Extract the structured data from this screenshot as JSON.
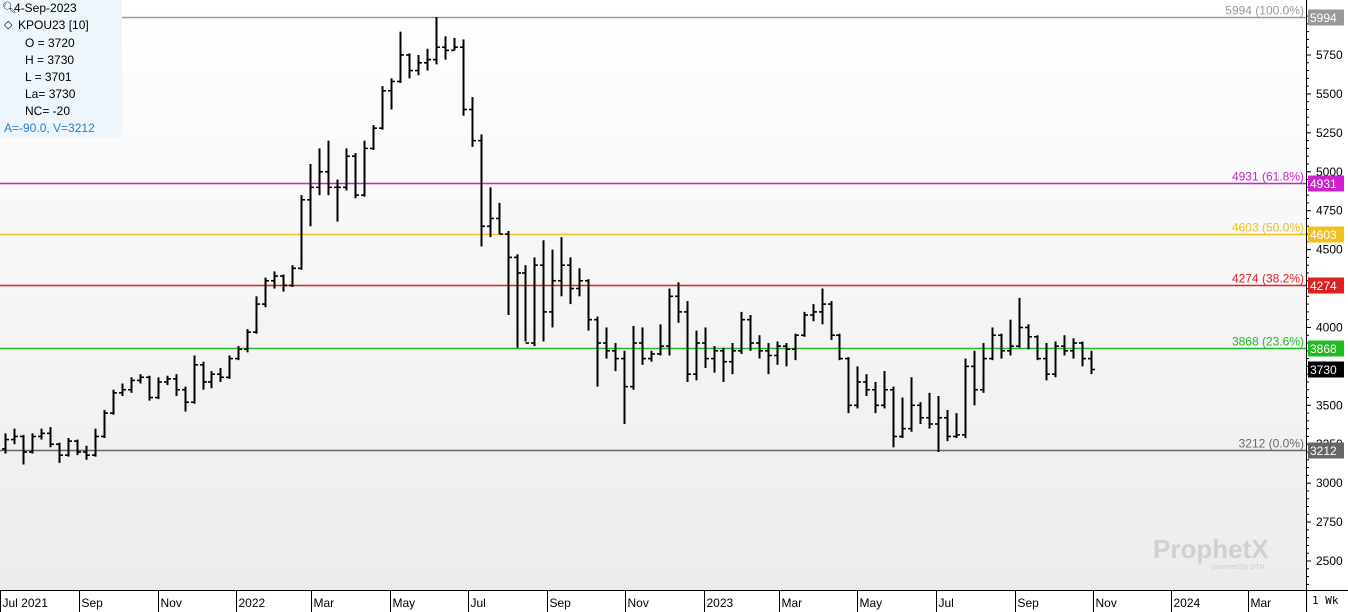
{
  "info_panel": {
    "date": "4-Sep-2023",
    "symbol": "KPOU23 [10]",
    "open": "O = 3720",
    "high": "H = 3730",
    "low": "L = 3701",
    "last": "La= 3730",
    "net_change": "NC= -20",
    "av": "A=-90.0, V=3212"
  },
  "watermark": {
    "brand": "ProphetX",
    "sub": "powered by DTN"
  },
  "period_label": "1 Wk",
  "colors": {
    "fib_100": "#999999",
    "fib_618": "#cc22cc",
    "fib_50": "#f0c020",
    "fib_382": "#e02020",
    "fib_236": "#22bb22",
    "fib_0": "#666666",
    "last_price": "#000000",
    "bars": "#000000",
    "grid_top": "#ffffff",
    "grid_bottom": "#ececec"
  },
  "chart_data": {
    "type": "ohlc",
    "period": "weekly",
    "y_axis": {
      "min": 2300,
      "max": 6000,
      "ticks": [
        2500,
        2750,
        3000,
        3250,
        3500,
        3750,
        4000,
        4250,
        4500,
        4750,
        5000,
        5250,
        5500,
        5750
      ],
      "tick_labels": [
        "2500",
        "2750",
        "3000",
        "3250",
        "3500",
        "3750",
        "4000",
        "4250",
        "4500",
        "4750",
        "5000",
        "5250",
        "5500",
        "5750"
      ]
    },
    "x_axis": {
      "start": "2021-07-01",
      "end": "2024-04-15",
      "ticks": [
        {
          "date": "2021-07-01",
          "label": "Jul 2021"
        },
        {
          "date": "2021-09-01",
          "label": "Sep"
        },
        {
          "date": "2021-11-01",
          "label": "Nov"
        },
        {
          "date": "2022-01-01",
          "label": "2022"
        },
        {
          "date": "2022-03-01",
          "label": "Mar"
        },
        {
          "date": "2022-05-01",
          "label": "May"
        },
        {
          "date": "2022-07-01",
          "label": "Jul"
        },
        {
          "date": "2022-09-01",
          "label": "Sep"
        },
        {
          "date": "2022-11-01",
          "label": "Nov"
        },
        {
          "date": "2023-01-01",
          "label": "2023"
        },
        {
          "date": "2023-03-01",
          "label": "Mar"
        },
        {
          "date": "2023-05-01",
          "label": "May"
        },
        {
          "date": "2023-07-01",
          "label": "Jul"
        },
        {
          "date": "2023-09-01",
          "label": "Sep"
        },
        {
          "date": "2023-11-01",
          "label": "Nov"
        },
        {
          "date": "2024-01-01",
          "label": "2024"
        },
        {
          "date": "2024-03-01",
          "label": "Mar"
        }
      ]
    },
    "fib_levels": [
      {
        "value": 5994,
        "label": "5994 (100.0%)",
        "tag": "5994",
        "color": "#999999"
      },
      {
        "value": 4931,
        "label": "4931 (61.8%)",
        "tag": "4931",
        "color": "#cc22cc"
      },
      {
        "value": 4603,
        "label": "4603 (50.0%)",
        "tag": "4603",
        "color": "#f0c020"
      },
      {
        "value": 4274,
        "label": "4274 (38.2%)",
        "tag": "4274",
        "color": "#e02020"
      },
      {
        "value": 3868,
        "label": "3868 (23.6%)",
        "tag": "3868",
        "color": "#22bb22"
      },
      {
        "value": 3212,
        "label": "3212 (0.0%)",
        "tag": "3212",
        "color": "#666666"
      }
    ],
    "last_price": {
      "value": 3730,
      "tag": "3730"
    },
    "bars": [
      {
        "d": "2021-07-05",
        "o": 3220,
        "h": 3320,
        "l": 3190,
        "c": 3280
      },
      {
        "d": "2021-07-12",
        "o": 3280,
        "h": 3350,
        "l": 3250,
        "c": 3300
      },
      {
        "d": "2021-07-19",
        "o": 3300,
        "h": 3310,
        "l": 3120,
        "c": 3200
      },
      {
        "d": "2021-07-26",
        "o": 3200,
        "h": 3320,
        "l": 3190,
        "c": 3300
      },
      {
        "d": "2021-08-02",
        "o": 3300,
        "h": 3350,
        "l": 3280,
        "c": 3320
      },
      {
        "d": "2021-08-09",
        "o": 3320,
        "h": 3360,
        "l": 3230,
        "c": 3250
      },
      {
        "d": "2021-08-16",
        "o": 3250,
        "h": 3260,
        "l": 3130,
        "c": 3180
      },
      {
        "d": "2021-08-23",
        "o": 3180,
        "h": 3290,
        "l": 3170,
        "c": 3270
      },
      {
        "d": "2021-08-30",
        "o": 3270,
        "h": 3280,
        "l": 3180,
        "c": 3200
      },
      {
        "d": "2021-09-06",
        "o": 3200,
        "h": 3240,
        "l": 3150,
        "c": 3180
      },
      {
        "d": "2021-09-13",
        "o": 3180,
        "h": 3350,
        "l": 3170,
        "c": 3300
      },
      {
        "d": "2021-09-20",
        "o": 3300,
        "h": 3470,
        "l": 3290,
        "c": 3450
      },
      {
        "d": "2021-09-27",
        "o": 3450,
        "h": 3600,
        "l": 3440,
        "c": 3580
      },
      {
        "d": "2021-10-04",
        "o": 3580,
        "h": 3640,
        "l": 3560,
        "c": 3600
      },
      {
        "d": "2021-10-11",
        "o": 3600,
        "h": 3680,
        "l": 3580,
        "c": 3660
      },
      {
        "d": "2021-10-18",
        "o": 3660,
        "h": 3700,
        "l": 3640,
        "c": 3680
      },
      {
        "d": "2021-10-25",
        "o": 3680,
        "h": 3690,
        "l": 3530,
        "c": 3550
      },
      {
        "d": "2021-11-01",
        "o": 3550,
        "h": 3680,
        "l": 3540,
        "c": 3650
      },
      {
        "d": "2021-11-08",
        "o": 3650,
        "h": 3690,
        "l": 3630,
        "c": 3670
      },
      {
        "d": "2021-11-15",
        "o": 3670,
        "h": 3700,
        "l": 3560,
        "c": 3600
      },
      {
        "d": "2021-11-22",
        "o": 3600,
        "h": 3620,
        "l": 3460,
        "c": 3520
      },
      {
        "d": "2021-11-29",
        "o": 3520,
        "h": 3820,
        "l": 3510,
        "c": 3760
      },
      {
        "d": "2021-12-06",
        "o": 3760,
        "h": 3780,
        "l": 3600,
        "c": 3650
      },
      {
        "d": "2021-12-13",
        "o": 3650,
        "h": 3720,
        "l": 3610,
        "c": 3700
      },
      {
        "d": "2021-12-20",
        "o": 3700,
        "h": 3740,
        "l": 3650,
        "c": 3680
      },
      {
        "d": "2021-12-27",
        "o": 3680,
        "h": 3820,
        "l": 3670,
        "c": 3800
      },
      {
        "d": "2022-01-03",
        "o": 3800,
        "h": 3880,
        "l": 3790,
        "c": 3860
      },
      {
        "d": "2022-01-10",
        "o": 3860,
        "h": 3990,
        "l": 3840,
        "c": 3970
      },
      {
        "d": "2022-01-17",
        "o": 3970,
        "h": 4200,
        "l": 3960,
        "c": 4150
      },
      {
        "d": "2022-01-24",
        "o": 4150,
        "h": 4320,
        "l": 4130,
        "c": 4300
      },
      {
        "d": "2022-01-31",
        "o": 4300,
        "h": 4360,
        "l": 4250,
        "c": 4330
      },
      {
        "d": "2022-02-07",
        "o": 4330,
        "h": 4340,
        "l": 4230,
        "c": 4270
      },
      {
        "d": "2022-02-14",
        "o": 4270,
        "h": 4400,
        "l": 4260,
        "c": 4380
      },
      {
        "d": "2022-02-21",
        "o": 4380,
        "h": 4850,
        "l": 4370,
        "c": 4820
      },
      {
        "d": "2022-02-28",
        "o": 4820,
        "h": 5050,
        "l": 4650,
        "c": 4900
      },
      {
        "d": "2022-03-07",
        "o": 4900,
        "h": 5150,
        "l": 4850,
        "c": 5000
      },
      {
        "d": "2022-03-14",
        "o": 5000,
        "h": 5200,
        "l": 4850,
        "c": 4900
      },
      {
        "d": "2022-03-21",
        "o": 4900,
        "h": 4950,
        "l": 4680,
        "c": 4900
      },
      {
        "d": "2022-03-28",
        "o": 4900,
        "h": 5150,
        "l": 4880,
        "c": 5100
      },
      {
        "d": "2022-04-04",
        "o": 5100,
        "h": 5120,
        "l": 4830,
        "c": 4850
      },
      {
        "d": "2022-04-11",
        "o": 4850,
        "h": 5200,
        "l": 4840,
        "c": 5150
      },
      {
        "d": "2022-04-18",
        "o": 5150,
        "h": 5300,
        "l": 5140,
        "c": 5280
      },
      {
        "d": "2022-04-25",
        "o": 5280,
        "h": 5550,
        "l": 5270,
        "c": 5520
      },
      {
        "d": "2022-05-02",
        "o": 5520,
        "h": 5600,
        "l": 5400,
        "c": 5580
      },
      {
        "d": "2022-05-09",
        "o": 5580,
        "h": 5900,
        "l": 5570,
        "c": 5750
      },
      {
        "d": "2022-05-16",
        "o": 5750,
        "h": 5760,
        "l": 5600,
        "c": 5650
      },
      {
        "d": "2022-05-23",
        "o": 5650,
        "h": 5750,
        "l": 5620,
        "c": 5700
      },
      {
        "d": "2022-05-30",
        "o": 5700,
        "h": 5790,
        "l": 5650,
        "c": 5720
      },
      {
        "d": "2022-06-06",
        "o": 5720,
        "h": 5994,
        "l": 5690,
        "c": 5800
      },
      {
        "d": "2022-06-13",
        "o": 5800,
        "h": 5870,
        "l": 5720,
        "c": 5780
      },
      {
        "d": "2022-06-20",
        "o": 5780,
        "h": 5860,
        "l": 5780,
        "c": 5800
      },
      {
        "d": "2022-06-27",
        "o": 5800,
        "h": 5850,
        "l": 5360,
        "c": 5400
      },
      {
        "d": "2022-07-04",
        "o": 5400,
        "h": 5480,
        "l": 5160,
        "c": 5200
      },
      {
        "d": "2022-07-11",
        "o": 5200,
        "h": 5240,
        "l": 4520,
        "c": 4650
      },
      {
        "d": "2022-07-18",
        "o": 4650,
        "h": 4900,
        "l": 4580,
        "c": 4700
      },
      {
        "d": "2022-07-25",
        "o": 4700,
        "h": 4800,
        "l": 4600,
        "c": 4600
      },
      {
        "d": "2022-08-01",
        "o": 4600,
        "h": 4620,
        "l": 4080,
        "c": 4450
      },
      {
        "d": "2022-08-08",
        "o": 4450,
        "h": 4470,
        "l": 3870,
        "c": 4350
      },
      {
        "d": "2022-08-15",
        "o": 4350,
        "h": 4400,
        "l": 3910,
        "c": 3900
      },
      {
        "d": "2022-08-22",
        "o": 3900,
        "h": 4450,
        "l": 3880,
        "c": 4400
      },
      {
        "d": "2022-08-29",
        "o": 4400,
        "h": 4560,
        "l": 3910,
        "c": 4100
      },
      {
        "d": "2022-09-05",
        "o": 4100,
        "h": 4500,
        "l": 4000,
        "c": 4300
      },
      {
        "d": "2022-09-12",
        "o": 4300,
        "h": 4580,
        "l": 4200,
        "c": 4400
      },
      {
        "d": "2022-09-19",
        "o": 4400,
        "h": 4450,
        "l": 4150,
        "c": 4250
      },
      {
        "d": "2022-09-26",
        "o": 4250,
        "h": 4380,
        "l": 4200,
        "c": 4300
      },
      {
        "d": "2022-10-03",
        "o": 4300,
        "h": 4310,
        "l": 3980,
        "c": 4050
      },
      {
        "d": "2022-10-10",
        "o": 4050,
        "h": 4070,
        "l": 3620,
        "c": 3900
      },
      {
        "d": "2022-10-17",
        "o": 3900,
        "h": 4000,
        "l": 3800,
        "c": 3850
      },
      {
        "d": "2022-10-24",
        "o": 3850,
        "h": 3900,
        "l": 3720,
        "c": 3800
      },
      {
        "d": "2022-10-31",
        "o": 3800,
        "h": 3850,
        "l": 3380,
        "c": 3620
      },
      {
        "d": "2022-11-07",
        "o": 3620,
        "h": 4010,
        "l": 3600,
        "c": 3900
      },
      {
        "d": "2022-11-14",
        "o": 3900,
        "h": 4000,
        "l": 3760,
        "c": 3800
      },
      {
        "d": "2022-11-21",
        "o": 3800,
        "h": 3850,
        "l": 3780,
        "c": 3830
      },
      {
        "d": "2022-11-28",
        "o": 3830,
        "h": 4020,
        "l": 3820,
        "c": 3880
      },
      {
        "d": "2022-12-05",
        "o": 3880,
        "h": 4250,
        "l": 3820,
        "c": 4200
      },
      {
        "d": "2022-12-12",
        "o": 4200,
        "h": 4290,
        "l": 4030,
        "c": 4100
      },
      {
        "d": "2022-12-19",
        "o": 4100,
        "h": 4170,
        "l": 3650,
        "c": 3700
      },
      {
        "d": "2022-12-26",
        "o": 3700,
        "h": 3980,
        "l": 3660,
        "c": 3900
      },
      {
        "d": "2023-01-02",
        "o": 3900,
        "h": 4000,
        "l": 3740,
        "c": 3800
      },
      {
        "d": "2023-01-09",
        "o": 3800,
        "h": 3880,
        "l": 3710,
        "c": 3850
      },
      {
        "d": "2023-01-16",
        "o": 3850,
        "h": 3870,
        "l": 3650,
        "c": 3780
      },
      {
        "d": "2023-01-23",
        "o": 3780,
        "h": 3900,
        "l": 3700,
        "c": 3850
      },
      {
        "d": "2023-01-30",
        "o": 3850,
        "h": 4100,
        "l": 3830,
        "c": 4050
      },
      {
        "d": "2023-02-06",
        "o": 4050,
        "h": 4080,
        "l": 3850,
        "c": 3900
      },
      {
        "d": "2023-02-13",
        "o": 3900,
        "h": 3950,
        "l": 3800,
        "c": 3850
      },
      {
        "d": "2023-02-20",
        "o": 3850,
        "h": 3900,
        "l": 3700,
        "c": 3820
      },
      {
        "d": "2023-02-27",
        "o": 3820,
        "h": 3910,
        "l": 3760,
        "c": 3880
      },
      {
        "d": "2023-03-06",
        "o": 3880,
        "h": 3900,
        "l": 3750,
        "c": 3860
      },
      {
        "d": "2023-03-13",
        "o": 3860,
        "h": 3960,
        "l": 3790,
        "c": 3950
      },
      {
        "d": "2023-03-20",
        "o": 3950,
        "h": 4100,
        "l": 3940,
        "c": 4080
      },
      {
        "d": "2023-03-27",
        "o": 4080,
        "h": 4150,
        "l": 4040,
        "c": 4100
      },
      {
        "d": "2023-04-03",
        "o": 4100,
        "h": 4250,
        "l": 4020,
        "c": 4150
      },
      {
        "d": "2023-04-10",
        "o": 4150,
        "h": 4170,
        "l": 3920,
        "c": 3950
      },
      {
        "d": "2023-04-17",
        "o": 3950,
        "h": 3960,
        "l": 3790,
        "c": 3800
      },
      {
        "d": "2023-04-24",
        "o": 3800,
        "h": 3810,
        "l": 3450,
        "c": 3500
      },
      {
        "d": "2023-05-01",
        "o": 3500,
        "h": 3750,
        "l": 3480,
        "c": 3650
      },
      {
        "d": "2023-05-08",
        "o": 3650,
        "h": 3700,
        "l": 3560,
        "c": 3600
      },
      {
        "d": "2023-05-15",
        "o": 3600,
        "h": 3650,
        "l": 3450,
        "c": 3500
      },
      {
        "d": "2023-05-22",
        "o": 3500,
        "h": 3720,
        "l": 3480,
        "c": 3600
      },
      {
        "d": "2023-05-29",
        "o": 3600,
        "h": 3620,
        "l": 3230,
        "c": 3300
      },
      {
        "d": "2023-06-05",
        "o": 3300,
        "h": 3550,
        "l": 3290,
        "c": 3350
      },
      {
        "d": "2023-06-12",
        "o": 3350,
        "h": 3680,
        "l": 3330,
        "c": 3500
      },
      {
        "d": "2023-06-19",
        "o": 3500,
        "h": 3520,
        "l": 3380,
        "c": 3420
      },
      {
        "d": "2023-06-26",
        "o": 3420,
        "h": 3580,
        "l": 3350,
        "c": 3380
      },
      {
        "d": "2023-07-03",
        "o": 3380,
        "h": 3560,
        "l": 3200,
        "c": 3420
      },
      {
        "d": "2023-07-10",
        "o": 3420,
        "h": 3470,
        "l": 3270,
        "c": 3300
      },
      {
        "d": "2023-07-17",
        "o": 3300,
        "h": 3450,
        "l": 3290,
        "c": 3310
      },
      {
        "d": "2023-07-24",
        "o": 3310,
        "h": 3800,
        "l": 3290,
        "c": 3750
      },
      {
        "d": "2023-07-31",
        "o": 3750,
        "h": 3850,
        "l": 3500,
        "c": 3600
      },
      {
        "d": "2023-08-07",
        "o": 3600,
        "h": 3900,
        "l": 3580,
        "c": 3800
      },
      {
        "d": "2023-08-14",
        "o": 3800,
        "h": 4000,
        "l": 3790,
        "c": 3950
      },
      {
        "d": "2023-08-21",
        "o": 3950,
        "h": 3960,
        "l": 3800,
        "c": 3850
      },
      {
        "d": "2023-08-28",
        "o": 3850,
        "h": 4050,
        "l": 3820,
        "c": 3880
      },
      {
        "d": "2023-09-04",
        "o": 3880,
        "h": 4190,
        "l": 3870,
        "c": 4000
      },
      {
        "d": "2023-09-11",
        "o": 4000,
        "h": 4020,
        "l": 3860,
        "c": 3940
      },
      {
        "d": "2023-09-18",
        "o": 3940,
        "h": 3950,
        "l": 3790,
        "c": 3800
      },
      {
        "d": "2023-09-25",
        "o": 3800,
        "h": 3900,
        "l": 3660,
        "c": 3700
      },
      {
        "d": "2023-10-02",
        "o": 3700,
        "h": 3910,
        "l": 3680,
        "c": 3880
      },
      {
        "d": "2023-10-09",
        "o": 3880,
        "h": 3950,
        "l": 3820,
        "c": 3850
      },
      {
        "d": "2023-10-16",
        "o": 3850,
        "h": 3930,
        "l": 3800,
        "c": 3900
      },
      {
        "d": "2023-10-23",
        "o": 3900,
        "h": 3910,
        "l": 3750,
        "c": 3800
      },
      {
        "d": "2023-10-30",
        "o": 3800,
        "h": 3850,
        "l": 3700,
        "c": 3730
      }
    ]
  }
}
